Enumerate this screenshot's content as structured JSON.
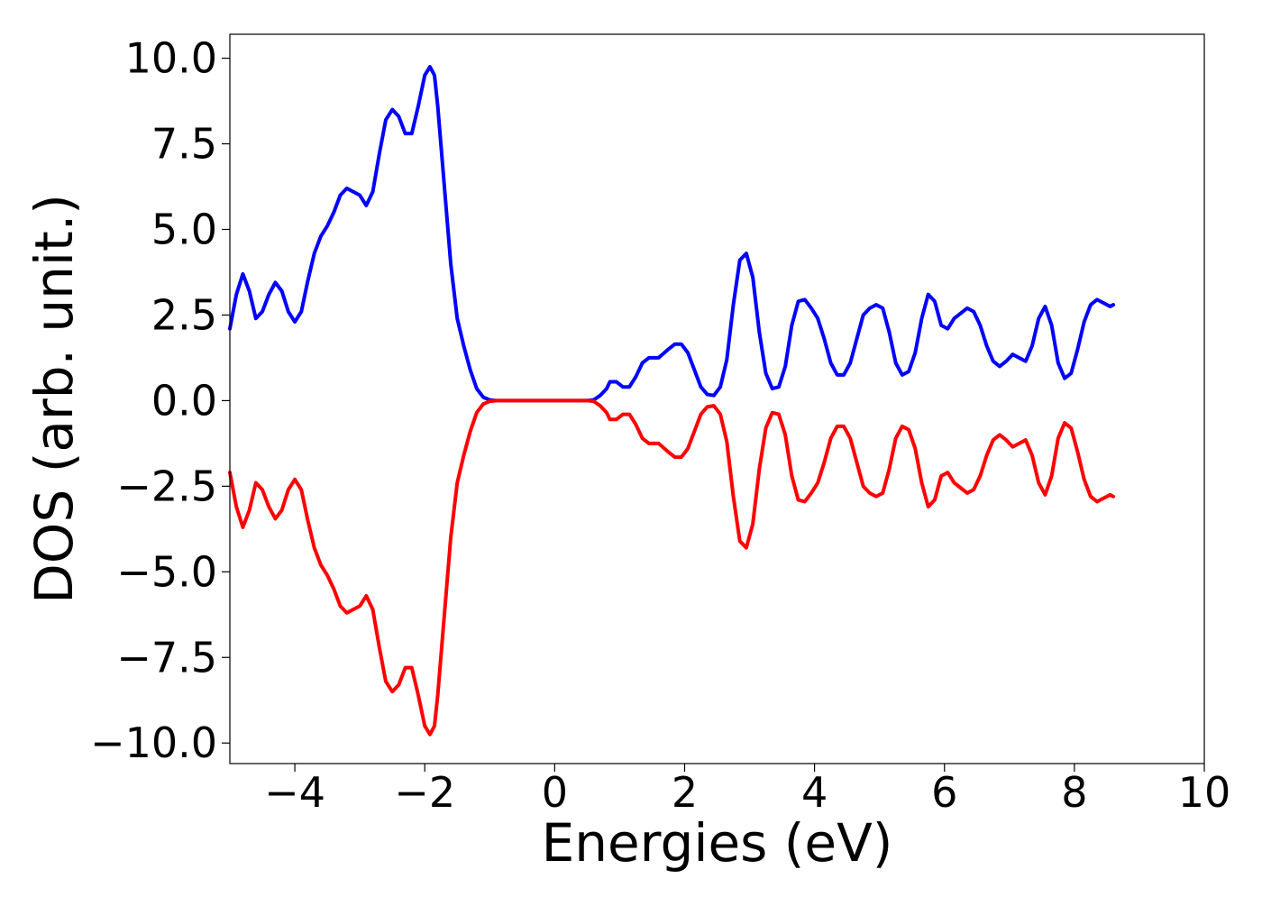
{
  "chart_data": {
    "type": "line",
    "title": "",
    "xlabel": "Energies (eV)",
    "ylabel": "DOS (arb. unit.)",
    "xlim": [
      -5,
      10
    ],
    "ylim": [
      -10.6,
      10.7
    ],
    "grid": false,
    "legend": "none",
    "x_ticks": [
      -4,
      -2,
      0,
      2,
      4,
      6,
      8,
      10
    ],
    "x_tick_labels": [
      "−4",
      "−2",
      "0",
      "2",
      "4",
      "6",
      "8",
      "10"
    ],
    "y_ticks": [
      10,
      7.5,
      5,
      2.5,
      0,
      -2.5,
      -5,
      -7.5,
      -10
    ],
    "y_tick_labels": [
      "10.0",
      "7.5",
      "5.0",
      "2.5",
      "0.0",
      "−2.5",
      "−5.0",
      "−7.5",
      "−10.0"
    ],
    "series": [
      {
        "color": "#0000ff",
        "points": [
          [
            -5.0,
            2.1
          ],
          [
            -4.9,
            3.1
          ],
          [
            -4.8,
            3.7
          ],
          [
            -4.7,
            3.2
          ],
          [
            -4.6,
            2.4
          ],
          [
            -4.5,
            2.6
          ],
          [
            -4.4,
            3.1
          ],
          [
            -4.3,
            3.45
          ],
          [
            -4.2,
            3.2
          ],
          [
            -4.1,
            2.6
          ],
          [
            -4.0,
            2.3
          ],
          [
            -3.9,
            2.6
          ],
          [
            -3.8,
            3.5
          ],
          [
            -3.7,
            4.3
          ],
          [
            -3.6,
            4.8
          ],
          [
            -3.5,
            5.1
          ],
          [
            -3.4,
            5.5
          ],
          [
            -3.3,
            6.0
          ],
          [
            -3.2,
            6.2
          ],
          [
            -3.1,
            6.1
          ],
          [
            -3.0,
            6.0
          ],
          [
            -2.9,
            5.7
          ],
          [
            -2.8,
            6.1
          ],
          [
            -2.7,
            7.2
          ],
          [
            -2.6,
            8.2
          ],
          [
            -2.5,
            8.5
          ],
          [
            -2.4,
            8.3
          ],
          [
            -2.3,
            7.8
          ],
          [
            -2.2,
            7.8
          ],
          [
            -2.1,
            8.6
          ],
          [
            -2.0,
            9.5
          ],
          [
            -1.92,
            9.75
          ],
          [
            -1.85,
            9.5
          ],
          [
            -1.8,
            8.6
          ],
          [
            -1.7,
            6.3
          ],
          [
            -1.6,
            4.0
          ],
          [
            -1.5,
            2.4
          ],
          [
            -1.4,
            1.6
          ],
          [
            -1.3,
            0.9
          ],
          [
            -1.2,
            0.35
          ],
          [
            -1.1,
            0.1
          ],
          [
            -1.0,
            0.02
          ],
          [
            -0.9,
            0.0
          ],
          [
            -0.5,
            0.0
          ],
          [
            0.0,
            0.0
          ],
          [
            0.5,
            0.0
          ],
          [
            0.6,
            0.02
          ],
          [
            0.7,
            0.15
          ],
          [
            0.8,
            0.35
          ],
          [
            0.85,
            0.55
          ],
          [
            0.95,
            0.55
          ],
          [
            1.05,
            0.4
          ],
          [
            1.15,
            0.4
          ],
          [
            1.25,
            0.7
          ],
          [
            1.35,
            1.1
          ],
          [
            1.45,
            1.25
          ],
          [
            1.6,
            1.25
          ],
          [
            1.75,
            1.5
          ],
          [
            1.85,
            1.65
          ],
          [
            1.95,
            1.65
          ],
          [
            2.05,
            1.4
          ],
          [
            2.15,
            0.9
          ],
          [
            2.25,
            0.4
          ],
          [
            2.35,
            0.18
          ],
          [
            2.45,
            0.15
          ],
          [
            2.55,
            0.4
          ],
          [
            2.65,
            1.2
          ],
          [
            2.75,
            2.8
          ],
          [
            2.85,
            4.1
          ],
          [
            2.95,
            4.3
          ],
          [
            3.05,
            3.6
          ],
          [
            3.15,
            2.0
          ],
          [
            3.25,
            0.8
          ],
          [
            3.35,
            0.35
          ],
          [
            3.45,
            0.4
          ],
          [
            3.55,
            1.0
          ],
          [
            3.65,
            2.2
          ],
          [
            3.75,
            2.9
          ],
          [
            3.85,
            2.95
          ],
          [
            3.95,
            2.7
          ],
          [
            4.05,
            2.4
          ],
          [
            4.15,
            1.8
          ],
          [
            4.25,
            1.1
          ],
          [
            4.35,
            0.75
          ],
          [
            4.45,
            0.75
          ],
          [
            4.55,
            1.1
          ],
          [
            4.65,
            1.8
          ],
          [
            4.75,
            2.5
          ],
          [
            4.85,
            2.7
          ],
          [
            4.95,
            2.8
          ],
          [
            5.05,
            2.7
          ],
          [
            5.15,
            2.0
          ],
          [
            5.25,
            1.1
          ],
          [
            5.35,
            0.75
          ],
          [
            5.45,
            0.85
          ],
          [
            5.55,
            1.4
          ],
          [
            5.65,
            2.4
          ],
          [
            5.75,
            3.1
          ],
          [
            5.85,
            2.9
          ],
          [
            5.95,
            2.2
          ],
          [
            6.05,
            2.1
          ],
          [
            6.15,
            2.4
          ],
          [
            6.25,
            2.55
          ],
          [
            6.35,
            2.7
          ],
          [
            6.45,
            2.6
          ],
          [
            6.55,
            2.2
          ],
          [
            6.65,
            1.6
          ],
          [
            6.75,
            1.15
          ],
          [
            6.85,
            1.0
          ],
          [
            6.95,
            1.15
          ],
          [
            7.05,
            1.35
          ],
          [
            7.15,
            1.25
          ],
          [
            7.25,
            1.15
          ],
          [
            7.35,
            1.6
          ],
          [
            7.45,
            2.4
          ],
          [
            7.55,
            2.75
          ],
          [
            7.65,
            2.2
          ],
          [
            7.75,
            1.1
          ],
          [
            7.85,
            0.65
          ],
          [
            7.95,
            0.8
          ],
          [
            8.05,
            1.5
          ],
          [
            8.15,
            2.3
          ],
          [
            8.25,
            2.8
          ],
          [
            8.35,
            2.95
          ],
          [
            8.45,
            2.85
          ],
          [
            8.55,
            2.75
          ],
          [
            8.6,
            2.8
          ]
        ]
      },
      {
        "color": "#ff0000",
        "points": [
          [
            -5.0,
            -2.1
          ],
          [
            -4.9,
            -3.1
          ],
          [
            -4.8,
            -3.7
          ],
          [
            -4.7,
            -3.2
          ],
          [
            -4.6,
            -2.4
          ],
          [
            -4.5,
            -2.6
          ],
          [
            -4.4,
            -3.1
          ],
          [
            -4.3,
            -3.45
          ],
          [
            -4.2,
            -3.2
          ],
          [
            -4.1,
            -2.6
          ],
          [
            -4.0,
            -2.3
          ],
          [
            -3.9,
            -2.6
          ],
          [
            -3.8,
            -3.5
          ],
          [
            -3.7,
            -4.3
          ],
          [
            -3.6,
            -4.8
          ],
          [
            -3.5,
            -5.1
          ],
          [
            -3.4,
            -5.5
          ],
          [
            -3.3,
            -6.0
          ],
          [
            -3.2,
            -6.2
          ],
          [
            -3.1,
            -6.1
          ],
          [
            -3.0,
            -6.0
          ],
          [
            -2.9,
            -5.7
          ],
          [
            -2.8,
            -6.1
          ],
          [
            -2.7,
            -7.2
          ],
          [
            -2.6,
            -8.2
          ],
          [
            -2.5,
            -8.5
          ],
          [
            -2.4,
            -8.3
          ],
          [
            -2.3,
            -7.8
          ],
          [
            -2.2,
            -7.8
          ],
          [
            -2.1,
            -8.6
          ],
          [
            -2.0,
            -9.5
          ],
          [
            -1.92,
            -9.75
          ],
          [
            -1.85,
            -9.5
          ],
          [
            -1.8,
            -8.6
          ],
          [
            -1.7,
            -6.3
          ],
          [
            -1.6,
            -4.0
          ],
          [
            -1.5,
            -2.4
          ],
          [
            -1.4,
            -1.6
          ],
          [
            -1.3,
            -0.9
          ],
          [
            -1.2,
            -0.35
          ],
          [
            -1.1,
            -0.1
          ],
          [
            -1.0,
            -0.02
          ],
          [
            -0.9,
            0.0
          ],
          [
            -0.5,
            0.0
          ],
          [
            0.0,
            0.0
          ],
          [
            0.5,
            0.0
          ],
          [
            0.6,
            -0.02
          ],
          [
            0.7,
            -0.15
          ],
          [
            0.8,
            -0.35
          ],
          [
            0.85,
            -0.55
          ],
          [
            0.95,
            -0.55
          ],
          [
            1.05,
            -0.4
          ],
          [
            1.15,
            -0.4
          ],
          [
            1.25,
            -0.7
          ],
          [
            1.35,
            -1.1
          ],
          [
            1.45,
            -1.25
          ],
          [
            1.6,
            -1.25
          ],
          [
            1.75,
            -1.5
          ],
          [
            1.85,
            -1.65
          ],
          [
            1.95,
            -1.65
          ],
          [
            2.05,
            -1.4
          ],
          [
            2.15,
            -0.9
          ],
          [
            2.25,
            -0.4
          ],
          [
            2.35,
            -0.18
          ],
          [
            2.45,
            -0.15
          ],
          [
            2.55,
            -0.4
          ],
          [
            2.65,
            -1.2
          ],
          [
            2.75,
            -2.8
          ],
          [
            2.85,
            -4.1
          ],
          [
            2.95,
            -4.3
          ],
          [
            3.05,
            -3.6
          ],
          [
            3.15,
            -2.0
          ],
          [
            3.25,
            -0.8
          ],
          [
            3.35,
            -0.35
          ],
          [
            3.45,
            -0.4
          ],
          [
            3.55,
            -1.0
          ],
          [
            3.65,
            -2.2
          ],
          [
            3.75,
            -2.9
          ],
          [
            3.85,
            -2.95
          ],
          [
            3.95,
            -2.7
          ],
          [
            4.05,
            -2.4
          ],
          [
            4.15,
            -1.8
          ],
          [
            4.25,
            -1.1
          ],
          [
            4.35,
            -0.75
          ],
          [
            4.45,
            -0.75
          ],
          [
            4.55,
            -1.1
          ],
          [
            4.65,
            -1.8
          ],
          [
            4.75,
            -2.5
          ],
          [
            4.85,
            -2.7
          ],
          [
            4.95,
            -2.8
          ],
          [
            5.05,
            -2.7
          ],
          [
            5.15,
            -2.0
          ],
          [
            5.25,
            -1.1
          ],
          [
            5.35,
            -0.75
          ],
          [
            5.45,
            -0.85
          ],
          [
            5.55,
            -1.4
          ],
          [
            5.65,
            -2.4
          ],
          [
            5.75,
            -3.1
          ],
          [
            5.85,
            -2.9
          ],
          [
            5.95,
            -2.2
          ],
          [
            6.05,
            -2.1
          ],
          [
            6.15,
            -2.4
          ],
          [
            6.25,
            -2.55
          ],
          [
            6.35,
            -2.7
          ],
          [
            6.45,
            -2.6
          ],
          [
            6.55,
            -2.2
          ],
          [
            6.65,
            -1.6
          ],
          [
            6.75,
            -1.15
          ],
          [
            6.85,
            -1.0
          ],
          [
            6.95,
            -1.15
          ],
          [
            7.05,
            -1.35
          ],
          [
            7.15,
            -1.25
          ],
          [
            7.25,
            -1.15
          ],
          [
            7.35,
            -1.6
          ],
          [
            7.45,
            -2.4
          ],
          [
            7.55,
            -2.75
          ],
          [
            7.65,
            -2.2
          ],
          [
            7.75,
            -1.1
          ],
          [
            7.85,
            -0.65
          ],
          [
            7.95,
            -0.8
          ],
          [
            8.05,
            -1.5
          ],
          [
            8.15,
            -2.3
          ],
          [
            8.25,
            -2.8
          ],
          [
            8.35,
            -2.95
          ],
          [
            8.45,
            -2.85
          ],
          [
            8.55,
            -2.75
          ],
          [
            8.6,
            -2.8
          ]
        ]
      }
    ]
  }
}
